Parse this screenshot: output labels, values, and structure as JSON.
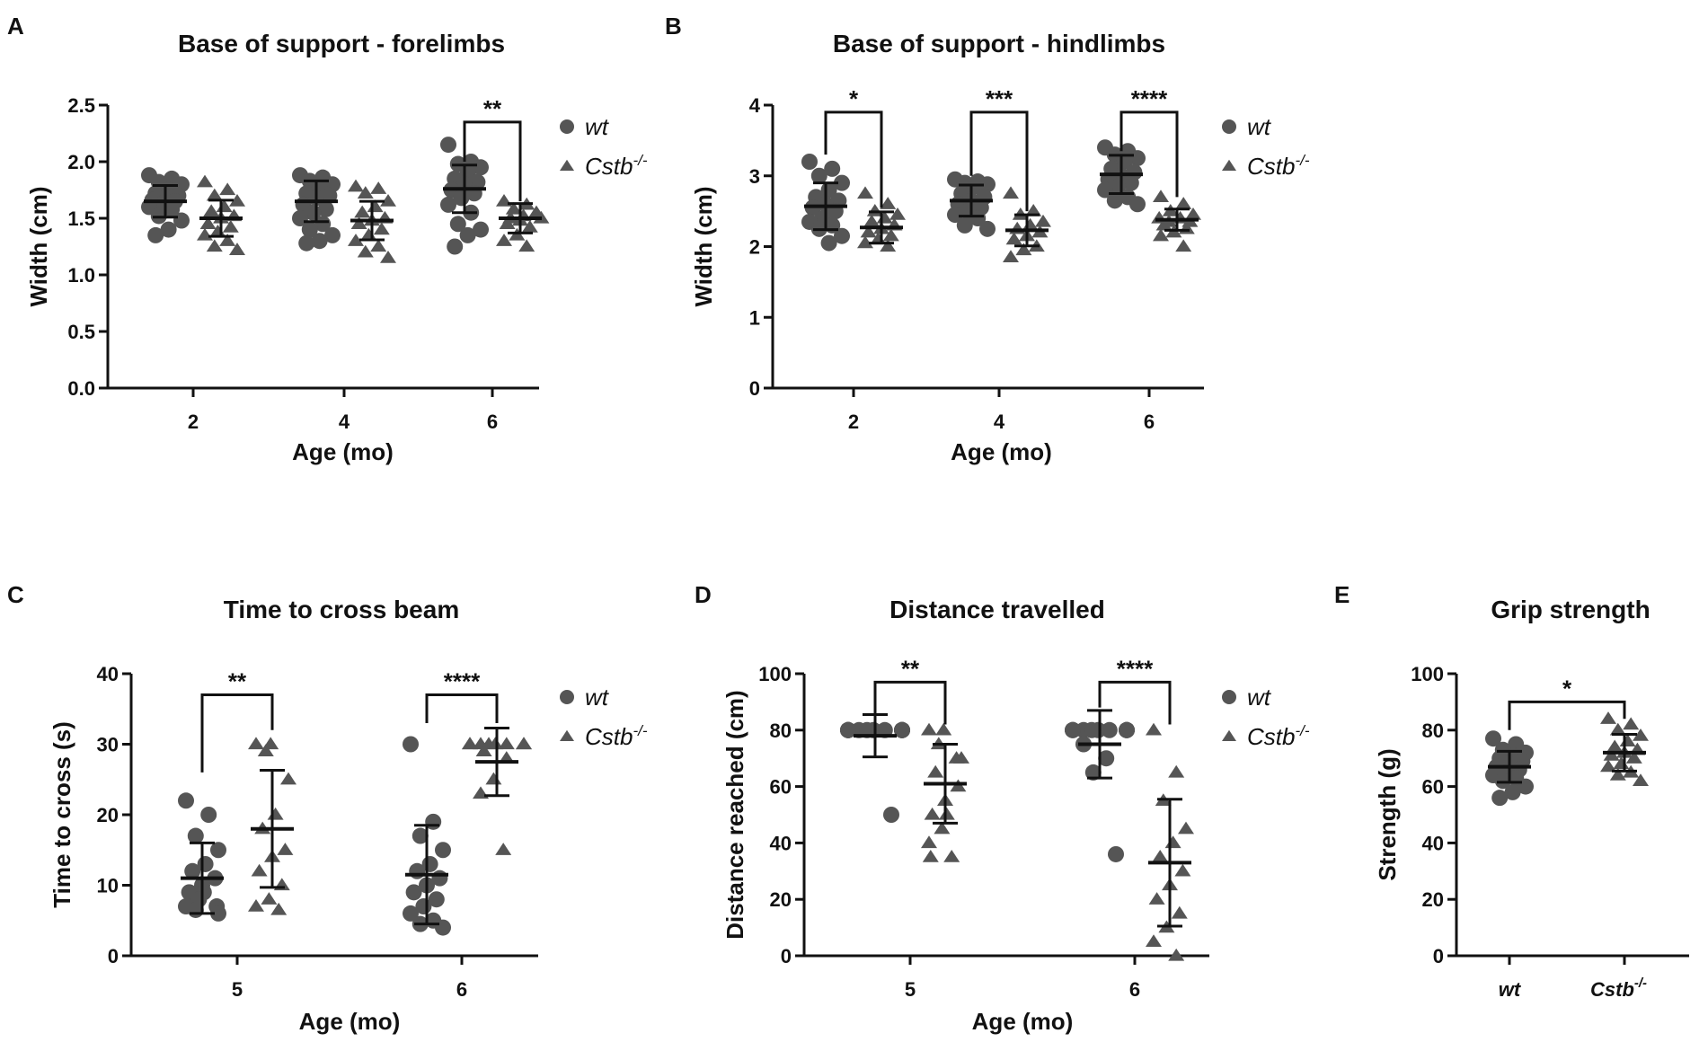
{
  "colors": {
    "wt": "#555555",
    "cstb": "#555555",
    "ink": "#111111"
  },
  "legend": {
    "wt": "wt",
    "cstb_base": "Cstb",
    "cstb_sup": "-/-"
  },
  "chart_data": [
    {
      "panel": "A",
      "type": "scatter",
      "title": "Base of support - forelimbs",
      "xlabel": "Age (mo)",
      "ylabel": "Width (cm)",
      "ylim": [
        0,
        2.5
      ],
      "yticks": [
        "0.0",
        "0.5",
        "1.0",
        "1.5",
        "2.0",
        "2.5"
      ],
      "categories": [
        "2",
        "4",
        "6"
      ],
      "legend": true,
      "series": [
        {
          "name": "wt",
          "marker": "circle",
          "groups": [
            {
              "mean": 1.65,
              "sd": 0.14,
              "points": [
                1.88,
                1.85,
                1.82,
                1.8,
                1.75,
                1.72,
                1.7,
                1.68,
                1.66,
                1.65,
                1.63,
                1.6,
                1.58,
                1.52,
                1.48,
                1.4,
                1.35
              ]
            },
            {
              "mean": 1.65,
              "sd": 0.18,
              "points": [
                1.88,
                1.86,
                1.83,
                1.8,
                1.76,
                1.72,
                1.7,
                1.68,
                1.62,
                1.58,
                1.55,
                1.5,
                1.45,
                1.4,
                1.35,
                1.3,
                1.28
              ]
            },
            {
              "mean": 1.76,
              "sd": 0.21,
              "points": [
                2.15,
                2.0,
                1.98,
                1.95,
                1.9,
                1.85,
                1.82,
                1.8,
                1.75,
                1.72,
                1.68,
                1.62,
                1.55,
                1.45,
                1.4,
                1.35,
                1.25
              ]
            }
          ]
        },
        {
          "name": "Cstb-/-",
          "marker": "triangle",
          "groups": [
            {
              "mean": 1.5,
              "sd": 0.16,
              "points": [
                1.82,
                1.75,
                1.7,
                1.65,
                1.6,
                1.56,
                1.52,
                1.5,
                1.45,
                1.42,
                1.38,
                1.35,
                1.3,
                1.25,
                1.22
              ]
            },
            {
              "mean": 1.48,
              "sd": 0.17,
              "points": [
                1.78,
                1.76,
                1.72,
                1.65,
                1.6,
                1.55,
                1.5,
                1.48,
                1.45,
                1.4,
                1.35,
                1.3,
                1.25,
                1.2,
                1.15
              ]
            },
            {
              "mean": 1.5,
              "sd": 0.13,
              "points": [
                1.65,
                1.62,
                1.58,
                1.55,
                1.52,
                1.5,
                1.5,
                1.48,
                1.45,
                1.42,
                1.35,
                1.3,
                1.25
              ]
            }
          ]
        }
      ],
      "significance": [
        {
          "category": 2,
          "label": "**",
          "y": 2.35,
          "drop_a": 2.0,
          "drop_b": 1.65
        }
      ]
    },
    {
      "panel": "B",
      "type": "scatter",
      "title": "Base of support - hindlimbs",
      "xlabel": "Age (mo)",
      "ylabel": "Width (cm)",
      "ylim": [
        0,
        4
      ],
      "yticks": [
        "0",
        "1",
        "2",
        "3",
        "4"
      ],
      "categories": [
        "2",
        "4",
        "6"
      ],
      "legend": true,
      "series": [
        {
          "name": "wt",
          "marker": "circle",
          "groups": [
            {
              "mean": 2.57,
              "sd": 0.33,
              "points": [
                3.2,
                3.1,
                3.0,
                2.9,
                2.8,
                2.7,
                2.65,
                2.6,
                2.55,
                2.5,
                2.4,
                2.35,
                2.3,
                2.25,
                2.15,
                2.05
              ]
            },
            {
              "mean": 2.65,
              "sd": 0.22,
              "points": [
                2.95,
                2.92,
                2.9,
                2.88,
                2.85,
                2.75,
                2.7,
                2.65,
                2.6,
                2.55,
                2.5,
                2.45,
                2.4,
                2.3,
                2.25
              ]
            },
            {
              "mean": 3.02,
              "sd": 0.27,
              "points": [
                3.4,
                3.35,
                3.3,
                3.25,
                3.2,
                3.1,
                3.05,
                3.0,
                2.95,
                2.9,
                2.85,
                2.8,
                2.7,
                2.65,
                2.6
              ]
            }
          ]
        },
        {
          "name": "Cstb-/-",
          "marker": "triangle",
          "groups": [
            {
              "mean": 2.27,
              "sd": 0.22,
              "points": [
                2.75,
                2.6,
                2.5,
                2.45,
                2.4,
                2.35,
                2.3,
                2.25,
                2.2,
                2.15,
                2.1,
                2.05,
                2.0
              ]
            },
            {
              "mean": 2.23,
              "sd": 0.22,
              "points": [
                2.75,
                2.5,
                2.45,
                2.35,
                2.3,
                2.25,
                2.2,
                2.15,
                2.1,
                2.0,
                1.95,
                1.85
              ]
            },
            {
              "mean": 2.38,
              "sd": 0.15,
              "points": [
                2.7,
                2.6,
                2.5,
                2.45,
                2.4,
                2.4,
                2.35,
                2.35,
                2.3,
                2.25,
                2.2,
                2.15,
                2.0
              ]
            }
          ]
        }
      ],
      "significance": [
        {
          "category": 0,
          "label": "*",
          "y": 3.9,
          "drop_a": 3.3,
          "drop_b": 2.55
        },
        {
          "category": 1,
          "label": "***",
          "y": 3.9,
          "drop_a": 3.0,
          "drop_b": 2.5
        },
        {
          "category": 2,
          "label": "****",
          "y": 3.9,
          "drop_a": 3.35,
          "drop_b": 2.7
        }
      ]
    },
    {
      "panel": "C",
      "type": "scatter",
      "title": "Time to cross beam",
      "xlabel": "Age (mo)",
      "ylabel": "Time to cross (s)",
      "ylim": [
        0,
        40
      ],
      "yticks": [
        "0",
        "10",
        "20",
        "30",
        "40"
      ],
      "categories": [
        "5",
        "6"
      ],
      "legend": true,
      "series": [
        {
          "name": "wt",
          "marker": "circle",
          "groups": [
            {
              "mean": 11,
              "sd": 5,
              "points": [
                22,
                20,
                17,
                15,
                13,
                12,
                11,
                10,
                9,
                9,
                8,
                7,
                7,
                6.5,
                6
              ]
            },
            {
              "mean": 11.5,
              "sd": 7,
              "points": [
                30,
                19,
                17,
                15,
                13,
                12,
                11,
                10,
                9,
                8,
                7,
                6,
                5,
                4.5,
                4
              ]
            }
          ]
        },
        {
          "name": "Cstb-/-",
          "marker": "triangle",
          "groups": [
            {
              "mean": 18,
              "sd": 8.3,
              "points": [
                30,
                30,
                29,
                25,
                20,
                18,
                15,
                14,
                12,
                10,
                8,
                7,
                6.5
              ]
            },
            {
              "mean": 27.5,
              "sd": 4.8,
              "points": [
                30,
                30,
                30,
                30,
                30,
                30,
                30,
                30,
                29,
                28,
                25,
                23,
                15
              ]
            }
          ]
        }
      ],
      "significance": [
        {
          "category": 0,
          "label": "**",
          "y": 37,
          "drop_a": 26,
          "drop_b": 32
        },
        {
          "category": 1,
          "label": "****",
          "y": 37,
          "drop_a": 33,
          "drop_b": 33
        }
      ]
    },
    {
      "panel": "D",
      "type": "scatter",
      "title": "Distance travelled",
      "xlabel": "Age (mo)",
      "ylabel": "Distance reached (cm)",
      "ylim": [
        0,
        100
      ],
      "yticks": [
        "0",
        "20",
        "40",
        "60",
        "80",
        "100"
      ],
      "categories": [
        "5",
        "6"
      ],
      "legend": true,
      "series": [
        {
          "name": "wt",
          "marker": "circle",
          "groups": [
            {
              "mean": 78,
              "sd": 7.5,
              "points": [
                80,
                80,
                80,
                80,
                80,
                80,
                80,
                80,
                80,
                80,
                80,
                80,
                80,
                80,
                50
              ]
            },
            {
              "mean": 75,
              "sd": 12,
              "points": [
                80,
                80,
                80,
                80,
                80,
                80,
                80,
                80,
                80,
                80,
                80,
                75,
                70,
                65,
                36
              ]
            }
          ]
        },
        {
          "name": "Cstb-/-",
          "marker": "triangle",
          "groups": [
            {
              "mean": 61,
              "sd": 14,
              "points": [
                80,
                80,
                75,
                70,
                70,
                65,
                60,
                55,
                50,
                50,
                45,
                40,
                35,
                35
              ]
            },
            {
              "mean": 33,
              "sd": 22.5,
              "points": [
                80,
                65,
                55,
                45,
                40,
                35,
                30,
                25,
                20,
                15,
                10,
                5,
                0
              ]
            }
          ]
        }
      ],
      "significance": [
        {
          "category": 0,
          "label": "**",
          "y": 97,
          "drop_a": 86,
          "drop_b": 82
        },
        {
          "category": 1,
          "label": "****",
          "y": 97,
          "drop_a": 88,
          "drop_b": 82
        }
      ]
    },
    {
      "panel": "E",
      "type": "scatter",
      "title": "Grip strength",
      "xlabel": "",
      "ylabel": "Strength (g)",
      "ylim": [
        0,
        100
      ],
      "yticks": [
        "0",
        "20",
        "40",
        "60",
        "80",
        "100"
      ],
      "categories": [
        "wt",
        "Cstb"
      ],
      "legend": false,
      "series": [
        {
          "name": "wt",
          "marker": "circle",
          "groups": [
            {
              "mean": 67,
              "sd": 5.5,
              "points": [
                77,
                75,
                73,
                72,
                71,
                70,
                69,
                68,
                67,
                66,
                65,
                64,
                63,
                62,
                60,
                58,
                56
              ]
            }
          ]
        },
        {
          "name": "Cstb-/-",
          "marker": "triangle",
          "groups": [
            {
              "mean": 72,
              "sd": 6.5,
              "points": [
                84,
                82,
                80,
                78,
                76,
                74,
                73,
                72,
                71,
                70,
                68,
                67,
                65,
                64,
                62
              ]
            }
          ]
        }
      ],
      "significance": [
        {
          "category": 0,
          "label": "*",
          "y": 90,
          "drop_a": 80,
          "drop_b": 84
        }
      ]
    }
  ]
}
